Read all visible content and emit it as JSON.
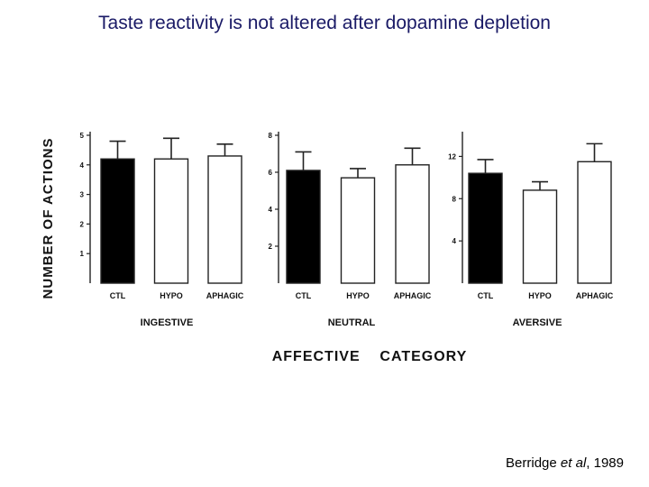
{
  "slide": {
    "title": "Taste reactivity is not altered after dopamine depletion",
    "citation_author": "Berridge ",
    "citation_etal": "et al",
    "citation_year": ", 1989"
  },
  "figure": {
    "ylabel": "NUMBER OF ACTIONS",
    "xlabel": "AFFECTIVE    CATEGORY"
  },
  "chart_data": [
    {
      "type": "bar",
      "title": "INGESTIVE",
      "categories": [
        "CTL",
        "HYPO",
        "APHAGIC"
      ],
      "values": [
        4.2,
        4.2,
        4.3
      ],
      "errors": [
        0.6,
        0.7,
        0.4
      ],
      "fills": [
        "#000000",
        "#ffffff",
        "#ffffff"
      ],
      "ylim": [
        0,
        5
      ],
      "yticks": [
        1,
        2,
        3,
        4,
        5
      ],
      "xlabel": "INGESTIVE",
      "ylabel": "NUMBER OF ACTIONS"
    },
    {
      "type": "bar",
      "title": "NEUTRAL",
      "categories": [
        "CTL",
        "HYPO",
        "APHAGIC"
      ],
      "values": [
        6.1,
        5.7,
        6.4
      ],
      "errors": [
        1.0,
        0.5,
        0.9
      ],
      "fills": [
        "#000000",
        "#ffffff",
        "#ffffff"
      ],
      "ylim": [
        0,
        8
      ],
      "yticks": [
        2,
        4,
        6,
        8
      ],
      "xlabel": "NEUTRAL",
      "ylabel": "NUMBER OF ACTIONS"
    },
    {
      "type": "bar",
      "title": "AVERSIVE",
      "categories": [
        "CTL",
        "HYPO",
        "APHAGIC"
      ],
      "values": [
        10.4,
        8.8,
        11.5
      ],
      "errors": [
        1.3,
        0.8,
        1.7
      ],
      "fills": [
        "#000000",
        "#ffffff",
        "#ffffff"
      ],
      "ylim": [
        0,
        14
      ],
      "yticks": [
        4,
        8,
        12
      ],
      "xlabel": "AVERSIVE",
      "ylabel": "NUMBER OF ACTIONS"
    }
  ]
}
